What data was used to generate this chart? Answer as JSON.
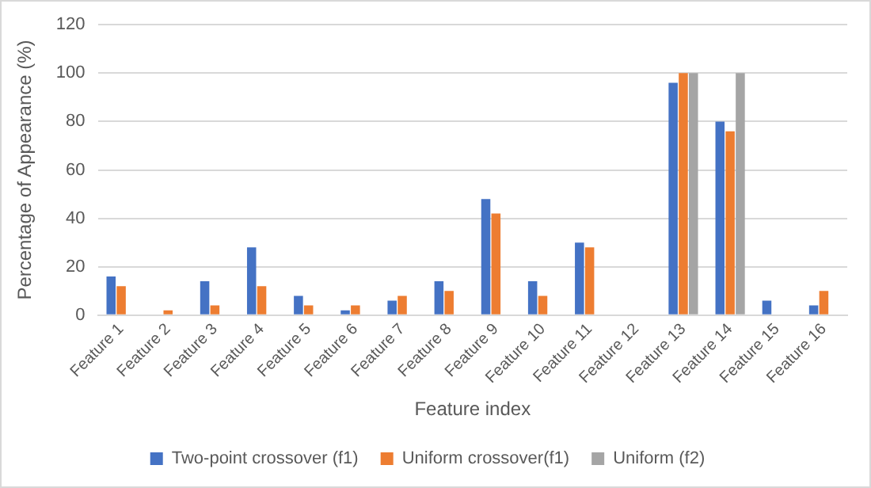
{
  "chart_data": {
    "type": "bar",
    "xlabel": "Feature index",
    "ylabel": "Percentage of Appearance (%)",
    "categories": [
      "Feature 1",
      "Feature 2",
      "Feature 3",
      "Feature 4",
      "Feature 5",
      "Feature 6",
      "Feature 7",
      "Feature 8",
      "Feature 9",
      "Feature 10",
      "Feature 11",
      "Feature 12",
      "Feature 13",
      "Feature 14",
      "Feature 15",
      "Feature 16"
    ],
    "series": [
      {
        "name": "Two-point crossover (f1)",
        "color": "#4472c4",
        "values": [
          16,
          0,
          14,
          28,
          8,
          2,
          6,
          14,
          48,
          14,
          30,
          0,
          96,
          80,
          6,
          4
        ]
      },
      {
        "name": "Uniform crossover(f1)",
        "color": "#ed7d31",
        "values": [
          12,
          2,
          4,
          12,
          4,
          4,
          8,
          10,
          42,
          8,
          28,
          0,
          100,
          76,
          0,
          10
        ]
      },
      {
        "name": "Uniform (f2)",
        "color": "#a5a5a5",
        "values": [
          0,
          0,
          0,
          0,
          0,
          0,
          0,
          0,
          0,
          0,
          0,
          0,
          100,
          100,
          0,
          0
        ]
      }
    ],
    "ylim": [
      0,
      120
    ],
    "yticks": [
      0,
      20,
      40,
      60,
      80,
      100,
      120
    ],
    "grid": "y",
    "legend": "bottom"
  }
}
